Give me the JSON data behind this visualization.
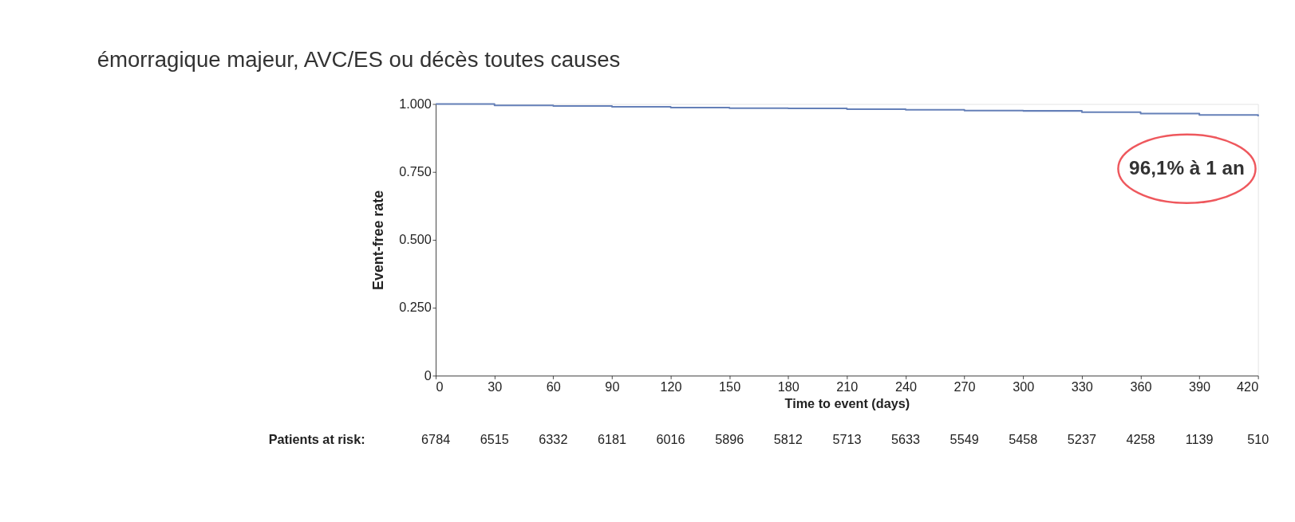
{
  "chart_data": {
    "type": "step",
    "title": "émorragique majeur, AVC/ES ou décès toutes causes",
    "xlabel": "Time to event (days)",
    "ylabel": "Event-free rate",
    "x": [
      0,
      30,
      60,
      90,
      120,
      150,
      180,
      210,
      240,
      270,
      300,
      330,
      360,
      390,
      420
    ],
    "series": [
      {
        "color": "#6580b8",
        "values": [
          1.0,
          0.995,
          0.993,
          0.99,
          0.987,
          0.985,
          0.984,
          0.981,
          0.979,
          0.976,
          0.975,
          0.97,
          0.965,
          0.96,
          0.955
        ]
      }
    ],
    "xlim": [
      0,
      420
    ],
    "xticks": [
      0,
      30,
      60,
      90,
      120,
      150,
      180,
      210,
      240,
      270,
      300,
      330,
      360,
      390,
      420
    ],
    "ylim": [
      0,
      1
    ],
    "yticks": [
      {
        "value": 0,
        "label": "0"
      },
      {
        "value": 0.25,
        "label": "0.250"
      },
      {
        "value": 0.5,
        "label": "0.500"
      },
      {
        "value": 0.75,
        "label": "0.750"
      },
      {
        "value": 1,
        "label": "1.000"
      }
    ],
    "grid": false,
    "marker": "none",
    "line_style": "solid",
    "annotations": [
      "96,1% à 1 an",
      "Patients at risk:",
      "6784",
      "6515",
      "6332",
      "6181",
      "6016",
      "5896",
      "5812",
      "5713",
      "5633",
      "5549",
      "5458",
      "5237",
      "4258",
      "1139",
      "510"
    ]
  }
}
